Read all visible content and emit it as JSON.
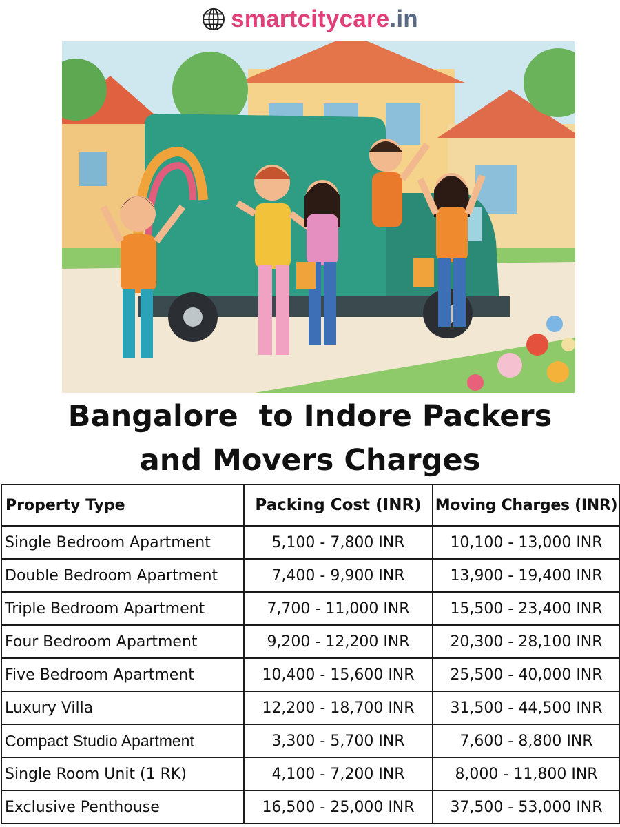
{
  "brand": {
    "icon": "globe-icon",
    "name": "smartcitycare",
    "tld": ".in",
    "colors": {
      "name": "#e0407a",
      "tld": "#5a6a84"
    }
  },
  "hero": {
    "description": "Illustration of a cheerful family waving beside a green moving truck in front of houses"
  },
  "headline": {
    "line1": "Bangalore  to Indore Packers",
    "line2": "and Movers Charges"
  },
  "table": {
    "headers": [
      "Property Type",
      "Packing Cost (INR)",
      "Moving Charges (INR)"
    ],
    "rows": [
      [
        "Single Bedroom Apartment",
        "5,100 - 7,800 INR",
        "10,100 - 13,000 INR"
      ],
      [
        "Double Bedroom Apartment",
        "7,400 - 9,900 INR",
        "13,900 - 19,400 INR"
      ],
      [
        "Triple Bedroom Apartment",
        "7,700 - 11,000 INR",
        "15,500 - 23,400 INR"
      ],
      [
        "Four Bedroom Apartment",
        "9,200 - 12,200 INR",
        "20,300 - 28,100 INR"
      ],
      [
        "Five Bedroom Apartment",
        "10,400 - 15,600 INR",
        "25,500 - 40,000 INR"
      ],
      [
        "Luxury Villa",
        "12,200 - 18,700 INR",
        "31,500 - 44,500 INR"
      ],
      [
        "Compact Studio Apartment",
        "3,300 - 5,700 INR",
        "7,600 - 8,800 INR"
      ],
      [
        "Single Room Unit (1 RK)",
        "4,100 - 7,200 INR",
        "8,000 - 11,800 INR"
      ],
      [
        "Exclusive Penthouse",
        "16,500 - 25,000 INR",
        "37,500 - 53,000 INR"
      ]
    ]
  }
}
